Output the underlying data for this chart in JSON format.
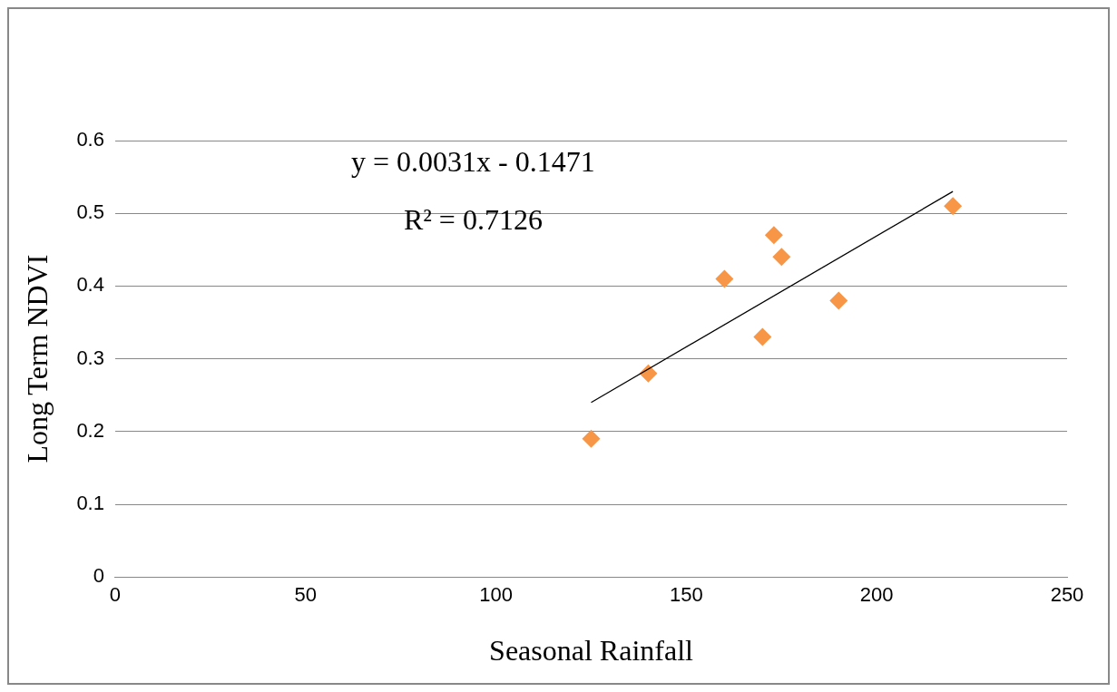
{
  "chart_data": {
    "type": "scatter",
    "xlabel": "Seasonal Rainfall",
    "ylabel": "Long Term NDVI",
    "xlim": [
      0,
      250
    ],
    "xticks": [
      0,
      50,
      100,
      150,
      200,
      250
    ],
    "ylim": [
      0,
      0.6
    ],
    "yticks": [
      0,
      0.1,
      0.2,
      0.3,
      0.4,
      0.5,
      0.6
    ],
    "grid": "y",
    "legend": false,
    "marker": "diamond",
    "annotations": [
      "y = 0.0031x - 0.1471",
      "R² = 0.7126"
    ],
    "series": [
      {
        "type": "scatter",
        "color": "#f79646",
        "x": [
          125,
          140,
          160,
          170,
          173,
          175,
          190,
          220
        ],
        "values": [
          0.19,
          0.28,
          0.41,
          0.33,
          0.47,
          0.44,
          0.38,
          0.51
        ]
      },
      {
        "type": "line",
        "color": "#000000",
        "marker": "none",
        "x": [
          125,
          220
        ],
        "values": [
          0.24,
          0.53
        ]
      }
    ]
  }
}
